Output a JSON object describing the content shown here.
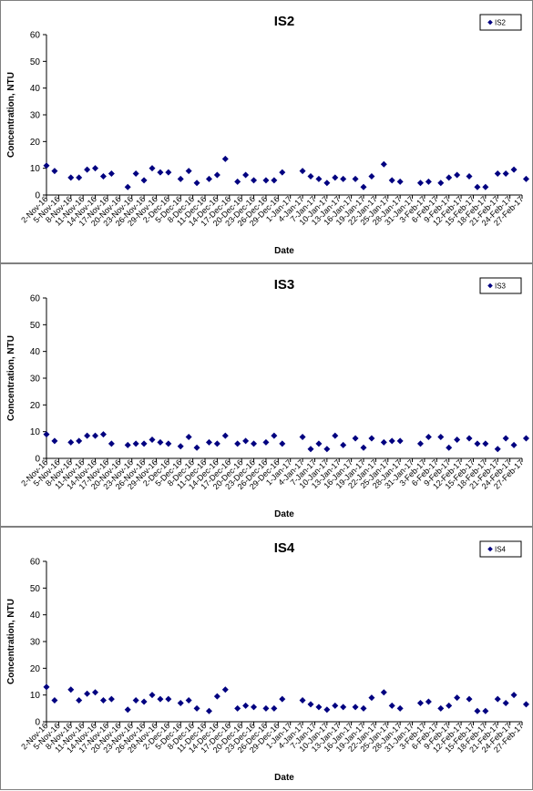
{
  "chart_data": [
    {
      "type": "scatter",
      "title": "IS2",
      "xlabel": "Date",
      "ylabel": "Concentration, NTU",
      "ylim": [
        0,
        60
      ],
      "yticks": [
        0,
        10,
        20,
        30,
        40,
        50,
        60
      ],
      "xlim": [
        "2016-11-02",
        "2017-02-27"
      ],
      "xtick_labels": [
        "2-Nov-16",
        "5-Nov-16",
        "8-Nov-16",
        "11-Nov-16",
        "14-Nov-16",
        "17-Nov-16",
        "20-Nov-16",
        "23-Nov-16",
        "26-Nov-16",
        "29-Nov-16",
        "2-Dec-16",
        "5-Dec-16",
        "8-Dec-16",
        "11-Dec-16",
        "14-Dec-16",
        "17-Dec-16",
        "20-Dec-16",
        "23-Dec-16",
        "26-Dec-16",
        "29-Dec-16",
        "1-Jan-17",
        "4-Jan-17",
        "7-Jan-17",
        "10-Jan-17",
        "13-Jan-17",
        "16-Jan-17",
        "19-Jan-17",
        "22-Jan-17",
        "25-Jan-17",
        "28-Jan-17",
        "31-Jan-17",
        "3-Feb-17",
        "6-Feb-17",
        "9-Feb-17",
        "12-Feb-17",
        "15-Feb-17",
        "18-Feb-17",
        "21-Feb-17",
        "24-Feb-17",
        "27-Feb-17"
      ],
      "legend": "top-right",
      "grid": false,
      "color": "#000080",
      "series": [
        {
          "name": "IS2",
          "points": [
            {
              "x": "2016-11-02",
              "y": 11
            },
            {
              "x": "2016-11-04",
              "y": 9
            },
            {
              "x": "2016-11-08",
              "y": 6.5
            },
            {
              "x": "2016-11-10",
              "y": 6.5
            },
            {
              "x": "2016-11-12",
              "y": 9.5
            },
            {
              "x": "2016-11-14",
              "y": 10
            },
            {
              "x": "2016-11-16",
              "y": 7
            },
            {
              "x": "2016-11-18",
              "y": 8
            },
            {
              "x": "2016-11-22",
              "y": 3
            },
            {
              "x": "2016-11-24",
              "y": 8
            },
            {
              "x": "2016-11-26",
              "y": 5.5
            },
            {
              "x": "2016-11-28",
              "y": 10
            },
            {
              "x": "2016-11-30",
              "y": 8.5
            },
            {
              "x": "2016-12-02",
              "y": 8.5
            },
            {
              "x": "2016-12-05",
              "y": 6
            },
            {
              "x": "2016-12-07",
              "y": 9
            },
            {
              "x": "2016-12-09",
              "y": 4.5
            },
            {
              "x": "2016-12-12",
              "y": 6
            },
            {
              "x": "2016-12-14",
              "y": 7.5
            },
            {
              "x": "2016-12-16",
              "y": 13.5
            },
            {
              "x": "2016-12-19",
              "y": 5
            },
            {
              "x": "2016-12-21",
              "y": 7.5
            },
            {
              "x": "2016-12-23",
              "y": 5.5
            },
            {
              "x": "2016-12-26",
              "y": 5.5
            },
            {
              "x": "2016-12-28",
              "y": 5.5
            },
            {
              "x": "2016-12-30",
              "y": 8.5
            },
            {
              "x": "2017-01-04",
              "y": 9
            },
            {
              "x": "2017-01-06",
              "y": 7
            },
            {
              "x": "2017-01-08",
              "y": 6
            },
            {
              "x": "2017-01-10",
              "y": 4.5
            },
            {
              "x": "2017-01-12",
              "y": 6.5
            },
            {
              "x": "2017-01-14",
              "y": 6
            },
            {
              "x": "2017-01-17",
              "y": 6
            },
            {
              "x": "2017-01-19",
              "y": 3
            },
            {
              "x": "2017-01-21",
              "y": 7
            },
            {
              "x": "2017-01-24",
              "y": 11.5
            },
            {
              "x": "2017-01-26",
              "y": 5.5
            },
            {
              "x": "2017-01-28",
              "y": 5
            },
            {
              "x": "2017-02-02",
              "y": 4.5
            },
            {
              "x": "2017-02-04",
              "y": 5
            },
            {
              "x": "2017-02-07",
              "y": 4.5
            },
            {
              "x": "2017-02-09",
              "y": 6.5
            },
            {
              "x": "2017-02-11",
              "y": 7.5
            },
            {
              "x": "2017-02-14",
              "y": 7
            },
            {
              "x": "2017-02-16",
              "y": 3
            },
            {
              "x": "2017-02-18",
              "y": 3
            },
            {
              "x": "2017-02-21",
              "y": 8
            },
            {
              "x": "2017-02-23",
              "y": 8
            },
            {
              "x": "2017-02-25",
              "y": 9.5
            },
            {
              "x": "2017-02-28",
              "y": 6
            }
          ]
        }
      ]
    },
    {
      "type": "scatter",
      "title": "IS3",
      "xlabel": "Date",
      "ylabel": "Concentration, NTU",
      "ylim": [
        0,
        60
      ],
      "yticks": [
        0,
        10,
        20,
        30,
        40,
        50,
        60
      ],
      "xlim": [
        "2016-11-02",
        "2017-02-27"
      ],
      "xtick_labels": [
        "2-Nov-16",
        "5-Nov-16",
        "8-Nov-16",
        "11-Nov-16",
        "14-Nov-16",
        "17-Nov-16",
        "20-Nov-16",
        "23-Nov-16",
        "26-Nov-16",
        "29-Nov-16",
        "2-Dec-16",
        "5-Dec-16",
        "8-Dec-16",
        "11-Dec-16",
        "14-Dec-16",
        "17-Dec-16",
        "20-Dec-16",
        "23-Dec-16",
        "26-Dec-16",
        "29-Dec-16",
        "1-Jan-17",
        "4-Jan-17",
        "7-Jan-17",
        "10-Jan-17",
        "13-Jan-17",
        "16-Jan-17",
        "19-Jan-17",
        "22-Jan-17",
        "25-Jan-17",
        "28-Jan-17",
        "31-Jan-17",
        "3-Feb-17",
        "6-Feb-17",
        "9-Feb-17",
        "12-Feb-17",
        "15-Feb-17",
        "18-Feb-17",
        "21-Feb-17",
        "24-Feb-17",
        "27-Feb-17"
      ],
      "legend": "top-right",
      "grid": false,
      "color": "#000080",
      "series": [
        {
          "name": "IS3",
          "points": [
            {
              "x": "2016-11-02",
              "y": 9
            },
            {
              "x": "2016-11-04",
              "y": 6.5
            },
            {
              "x": "2016-11-08",
              "y": 6
            },
            {
              "x": "2016-11-10",
              "y": 6.5
            },
            {
              "x": "2016-11-12",
              "y": 8.5
            },
            {
              "x": "2016-11-14",
              "y": 8.5
            },
            {
              "x": "2016-11-16",
              "y": 9
            },
            {
              "x": "2016-11-18",
              "y": 5.5
            },
            {
              "x": "2016-11-22",
              "y": 5
            },
            {
              "x": "2016-11-24",
              "y": 5.5
            },
            {
              "x": "2016-11-26",
              "y": 5.5
            },
            {
              "x": "2016-11-28",
              "y": 7
            },
            {
              "x": "2016-11-30",
              "y": 6
            },
            {
              "x": "2016-12-02",
              "y": 5.5
            },
            {
              "x": "2016-12-05",
              "y": 4.5
            },
            {
              "x": "2016-12-07",
              "y": 8
            },
            {
              "x": "2016-12-09",
              "y": 4
            },
            {
              "x": "2016-12-12",
              "y": 6
            },
            {
              "x": "2016-12-14",
              "y": 5.5
            },
            {
              "x": "2016-12-16",
              "y": 8.5
            },
            {
              "x": "2016-12-19",
              "y": 5.5
            },
            {
              "x": "2016-12-21",
              "y": 6.5
            },
            {
              "x": "2016-12-23",
              "y": 5.5
            },
            {
              "x": "2016-12-26",
              "y": 6
            },
            {
              "x": "2016-12-28",
              "y": 8.5
            },
            {
              "x": "2016-12-30",
              "y": 5.5
            },
            {
              "x": "2017-01-04",
              "y": 8
            },
            {
              "x": "2017-01-06",
              "y": 3.5
            },
            {
              "x": "2017-01-08",
              "y": 5.5
            },
            {
              "x": "2017-01-10",
              "y": 3.5
            },
            {
              "x": "2017-01-12",
              "y": 8.5
            },
            {
              "x": "2017-01-14",
              "y": 5
            },
            {
              "x": "2017-01-17",
              "y": 7.5
            },
            {
              "x": "2017-01-19",
              "y": 4
            },
            {
              "x": "2017-01-21",
              "y": 7.5
            },
            {
              "x": "2017-01-24",
              "y": 6
            },
            {
              "x": "2017-01-26",
              "y": 6.5
            },
            {
              "x": "2017-01-28",
              "y": 6.5
            },
            {
              "x": "2017-02-02",
              "y": 5.5
            },
            {
              "x": "2017-02-04",
              "y": 8
            },
            {
              "x": "2017-02-07",
              "y": 8
            },
            {
              "x": "2017-02-09",
              "y": 4
            },
            {
              "x": "2017-02-11",
              "y": 7
            },
            {
              "x": "2017-02-14",
              "y": 7.5
            },
            {
              "x": "2017-02-16",
              "y": 5.5
            },
            {
              "x": "2017-02-18",
              "y": 5.5
            },
            {
              "x": "2017-02-21",
              "y": 3.5
            },
            {
              "x": "2017-02-23",
              "y": 7.5
            },
            {
              "x": "2017-02-25",
              "y": 5
            },
            {
              "x": "2017-02-28",
              "y": 7.5
            }
          ]
        }
      ]
    },
    {
      "type": "scatter",
      "title": "IS4",
      "xlabel": "Date",
      "ylabel": "Concentration, NTU",
      "ylim": [
        0,
        60
      ],
      "yticks": [
        0,
        10,
        20,
        30,
        40,
        50,
        60
      ],
      "xlim": [
        "2016-11-02",
        "2017-02-27"
      ],
      "xtick_labels": [
        "2-Nov-16",
        "5-Nov-16",
        "8-Nov-16",
        "11-Nov-16",
        "14-Nov-16",
        "17-Nov-16",
        "20-Nov-16",
        "23-Nov-16",
        "26-Nov-16",
        "29-Nov-16",
        "2-Dec-16",
        "5-Dec-16",
        "8-Dec-16",
        "11-Dec-16",
        "14-Dec-16",
        "17-Dec-16",
        "20-Dec-16",
        "23-Dec-16",
        "26-Dec-16",
        "29-Dec-16",
        "1-Jan-17",
        "4-Jan-17",
        "7-Jan-17",
        "10-Jan-17",
        "13-Jan-17",
        "16-Jan-17",
        "19-Jan-17",
        "22-Jan-17",
        "25-Jan-17",
        "28-Jan-17",
        "31-Jan-17",
        "3-Feb-17",
        "6-Feb-17",
        "9-Feb-17",
        "12-Feb-17",
        "15-Feb-17",
        "18-Feb-17",
        "21-Feb-17",
        "24-Feb-17",
        "27-Feb-17"
      ],
      "legend": "top-right",
      "grid": false,
      "color": "#000080",
      "series": [
        {
          "name": "IS4",
          "points": [
            {
              "x": "2016-11-02",
              "y": 13
            },
            {
              "x": "2016-11-04",
              "y": 8
            },
            {
              "x": "2016-11-08",
              "y": 12
            },
            {
              "x": "2016-11-10",
              "y": 8
            },
            {
              "x": "2016-11-12",
              "y": 10.5
            },
            {
              "x": "2016-11-14",
              "y": 11
            },
            {
              "x": "2016-11-16",
              "y": 8
            },
            {
              "x": "2016-11-18",
              "y": 8.5
            },
            {
              "x": "2016-11-22",
              "y": 4.5
            },
            {
              "x": "2016-11-24",
              "y": 8
            },
            {
              "x": "2016-11-26",
              "y": 7.5
            },
            {
              "x": "2016-11-28",
              "y": 10
            },
            {
              "x": "2016-11-30",
              "y": 8.5
            },
            {
              "x": "2016-12-02",
              "y": 8.5
            },
            {
              "x": "2016-12-05",
              "y": 7
            },
            {
              "x": "2016-12-07",
              "y": 8
            },
            {
              "x": "2016-12-09",
              "y": 5
            },
            {
              "x": "2016-12-12",
              "y": 4
            },
            {
              "x": "2016-12-14",
              "y": 9.5
            },
            {
              "x": "2016-12-16",
              "y": 12
            },
            {
              "x": "2016-12-19",
              "y": 5
            },
            {
              "x": "2016-12-21",
              "y": 6
            },
            {
              "x": "2016-12-23",
              "y": 5.5
            },
            {
              "x": "2016-12-26",
              "y": 5
            },
            {
              "x": "2016-12-28",
              "y": 5
            },
            {
              "x": "2016-12-30",
              "y": 8.5
            },
            {
              "x": "2017-01-04",
              "y": 8
            },
            {
              "x": "2017-01-06",
              "y": 6.5
            },
            {
              "x": "2017-01-08",
              "y": 5.5
            },
            {
              "x": "2017-01-10",
              "y": 4.5
            },
            {
              "x": "2017-01-12",
              "y": 6
            },
            {
              "x": "2017-01-14",
              "y": 5.5
            },
            {
              "x": "2017-01-17",
              "y": 5.5
            },
            {
              "x": "2017-01-19",
              "y": 5
            },
            {
              "x": "2017-01-21",
              "y": 9
            },
            {
              "x": "2017-01-24",
              "y": 11
            },
            {
              "x": "2017-01-26",
              "y": 6
            },
            {
              "x": "2017-01-28",
              "y": 5
            },
            {
              "x": "2017-02-02",
              "y": 7
            },
            {
              "x": "2017-02-04",
              "y": 7.5
            },
            {
              "x": "2017-02-07",
              "y": 5
            },
            {
              "x": "2017-02-09",
              "y": 6
            },
            {
              "x": "2017-02-11",
              "y": 9
            },
            {
              "x": "2017-02-14",
              "y": 8.5
            },
            {
              "x": "2017-02-16",
              "y": 4
            },
            {
              "x": "2017-02-18",
              "y": 4
            },
            {
              "x": "2017-02-21",
              "y": 8.5
            },
            {
              "x": "2017-02-23",
              "y": 7
            },
            {
              "x": "2017-02-25",
              "y": 10
            },
            {
              "x": "2017-02-28",
              "y": 6.5
            }
          ]
        }
      ]
    }
  ]
}
